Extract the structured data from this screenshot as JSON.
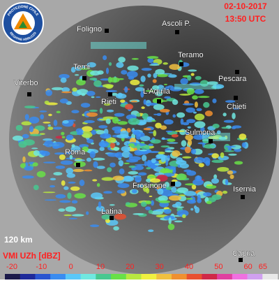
{
  "header": {
    "date": "02-10-2017",
    "time": "13:50 UTC"
  },
  "logo": {
    "top": "PROTEZIONE CIVILE",
    "bottom": "REGIONE ABRUZZO"
  },
  "cities": [
    "Foligno",
    "Ascoli P.",
    "Teramo",
    "Pescara",
    "Terni",
    "Viterbo",
    "Rieti",
    "L'Aquila",
    "Chieti",
    "Sulmona",
    "Roma",
    "Frosinone",
    "Isernia",
    "Latina",
    "Capua"
  ],
  "scale": "120 km",
  "legend": {
    "title": "VMI UZh [dBZ]",
    "xlim": [
      -20,
      70
    ],
    "ticks": [
      -20,
      -10,
      0,
      10,
      20,
      30,
      40,
      50,
      60,
      65
    ],
    "colors": [
      "#1c1a4a",
      "#1e2a9a",
      "#2a55d0",
      "#3a8cf0",
      "#5ac8f8",
      "#70e8e0",
      "#48c890",
      "#68e048",
      "#b8e840",
      "#f0f040",
      "#f0c040",
      "#f09030",
      "#e85030",
      "#d02848",
      "#e040a0",
      "#f070e0",
      "#d0a0f0",
      "#e8e8e8"
    ]
  }
}
